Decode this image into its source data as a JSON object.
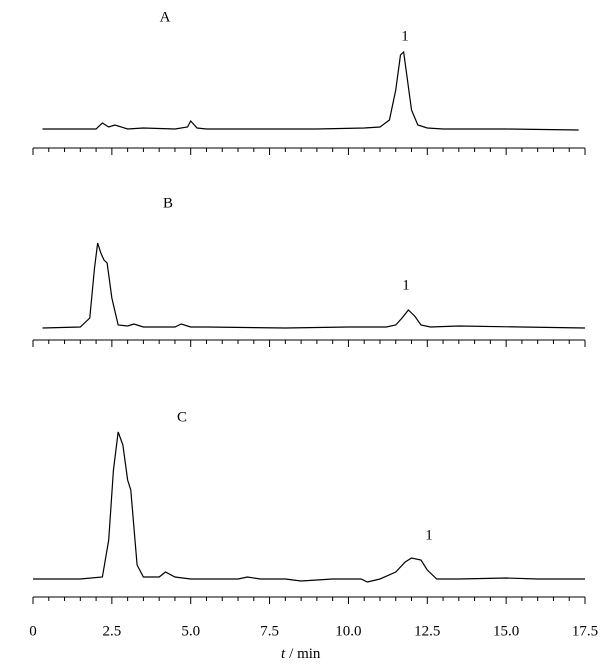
{
  "chart_data": [
    {
      "type": "line",
      "label": "A",
      "annotation": "1",
      "xlim": [
        0,
        17.5
      ],
      "xticks": [
        0,
        2.5,
        5.0,
        7.5,
        10.0,
        12.5,
        15.0,
        17.5
      ],
      "xminorticks": [
        0.5,
        1,
        1.5,
        2,
        3,
        3.5,
        4,
        4.5,
        5.5,
        6,
        6.5,
        7,
        8,
        8.5,
        9,
        9.5,
        10.5,
        11,
        11.5,
        12,
        13,
        13.5,
        14,
        14.5,
        15.5,
        16,
        16.5,
        17
      ],
      "ylim": [
        -2,
        90
      ],
      "color": "#000000",
      "series": [
        {
          "x": [
            0.3,
            2.0,
            2.2,
            2.4,
            2.6,
            3.0,
            3.5,
            4.5,
            4.9,
            5.0,
            5.2,
            5.5,
            7,
            9,
            10.5,
            11.0,
            11.3,
            11.5,
            11.65,
            11.75,
            11.85,
            12.0,
            12.2,
            12.5,
            13,
            15,
            17.3
          ],
          "values": [
            1,
            1,
            7,
            3,
            5,
            1,
            2,
            1,
            3,
            9,
            2,
            1,
            1,
            1,
            2,
            3,
            10,
            40,
            75,
            78,
            55,
            20,
            5,
            2,
            1,
            1,
            0
          ]
        }
      ]
    },
    {
      "type": "line",
      "label": "B",
      "annotation": "1",
      "xlim": [
        0,
        17.5
      ],
      "xticks": [
        0,
        2.5,
        5.0,
        7.5,
        10.0,
        12.5,
        15.0,
        17.5
      ],
      "xminorticks": [
        0.5,
        1,
        1.5,
        2,
        3,
        3.5,
        4,
        4.5,
        5.5,
        6,
        6.5,
        7,
        8,
        8.5,
        9,
        9.5,
        10.5,
        11,
        11.5,
        12,
        13,
        13.5,
        14,
        14.5,
        15.5,
        16,
        16.5,
        17
      ],
      "ylim": [
        -2,
        90
      ],
      "color": "#000000",
      "series": [
        {
          "x": [
            0.3,
            1.5,
            1.8,
            1.95,
            2.05,
            2.15,
            2.25,
            2.35,
            2.5,
            2.7,
            3.0,
            3.2,
            3.5,
            4.5,
            4.7,
            5.0,
            5.5,
            8,
            10,
            11.2,
            11.5,
            11.7,
            11.9,
            12.1,
            12.3,
            12.6,
            13.5,
            15.5,
            17.5
          ],
          "values": [
            0,
            1,
            10,
            60,
            85,
            75,
            68,
            65,
            30,
            3,
            2,
            4,
            1,
            1,
            4,
            1,
            1,
            0,
            1,
            1,
            3,
            10,
            18,
            12,
            3,
            1,
            2,
            1,
            0
          ]
        }
      ]
    },
    {
      "type": "line",
      "label": "C",
      "annotation": "1",
      "xlim": [
        0,
        17.5
      ],
      "xticks": [
        0,
        2.5,
        {
          "value": 5,
          "label": "5.0"
        },
        7.5,
        {
          "value": 10,
          "label": "10.0"
        },
        12.5,
        {
          "value": 15,
          "label": "15.0"
        },
        17.5
      ],
      "xminorticks": [
        0.5,
        1,
        1.5,
        2,
        3,
        3.5,
        4,
        4.5,
        5.5,
        6,
        6.5,
        7,
        8,
        8.5,
        9,
        9.5,
        10.5,
        11,
        11.5,
        12,
        13,
        13.5,
        14,
        14.5,
        15.5,
        16,
        16.5,
        17
      ],
      "xlabel_var": "t",
      "xlabel_unit": "/ min",
      "ylim": [
        -5,
        160
      ],
      "color": "#000000",
      "series": [
        {
          "x": [
            0.0,
            1.5,
            2.2,
            2.4,
            2.55,
            2.7,
            2.85,
            3.0,
            3.1,
            3.3,
            3.5,
            4.0,
            4.2,
            4.5,
            5.0,
            6.5,
            6.8,
            7.2,
            8.0,
            8.5,
            9.5,
            10.4,
            10.6,
            11.0,
            11.5,
            11.8,
            12.0,
            12.3,
            12.5,
            12.8,
            13.5,
            15.0,
            16.0,
            17.5
          ],
          "values": [
            1,
            1,
            3,
            40,
            110,
            148,
            135,
            100,
            90,
            15,
            3,
            3,
            8,
            3,
            1,
            1,
            3,
            1,
            1,
            -1,
            1,
            1,
            -2,
            1,
            8,
            18,
            22,
            20,
            10,
            1,
            1,
            2,
            1,
            1
          ]
        }
      ]
    }
  ]
}
